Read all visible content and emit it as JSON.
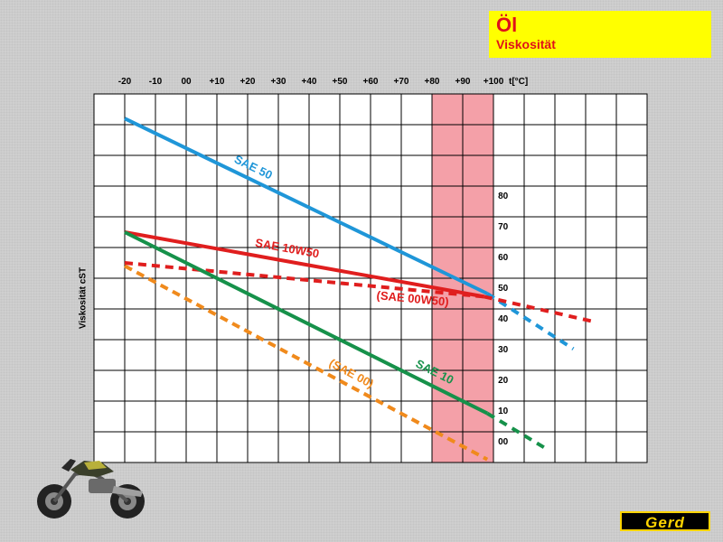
{
  "header": {
    "title": "Öl",
    "subtitle": "Viskosität"
  },
  "logo": {
    "text": "Gerd"
  },
  "chart_data": {
    "type": "line",
    "xlabel": "t[°C]",
    "ylabel": "Viskosität cST",
    "x_tick_labels": [
      "-20",
      "-10",
      "00",
      "+10",
      "+20",
      "+30",
      "+40",
      "+50",
      "+60",
      "+70",
      "+80",
      "+90",
      "+100"
    ],
    "x_ticks": [
      -20,
      -10,
      0,
      10,
      20,
      30,
      40,
      50,
      60,
      70,
      80,
      90,
      100
    ],
    "y_tick_labels": [
      "00",
      "10",
      "20",
      "30",
      "40",
      "50",
      "60",
      "70",
      "80"
    ],
    "y_ticks": [
      0,
      10,
      20,
      30,
      40,
      50,
      60,
      70,
      80
    ],
    "xlim": [
      -30,
      150
    ],
    "ylim": [
      -5,
      115
    ],
    "grid": true,
    "highlight_band": {
      "x": [
        80,
        100
      ],
      "color": "#f4a0a8"
    },
    "series": [
      {
        "name": "SAE 50",
        "color": "#1f96d8",
        "style": "solid",
        "points": [
          [
            -20,
            107
          ],
          [
            98,
            50
          ]
        ],
        "extension": [
          [
            98,
            50
          ],
          [
            126,
            32
          ]
        ]
      },
      {
        "name": "SAE 10W50",
        "color": "#e01e1e",
        "style": "solid",
        "points": [
          [
            -20,
            70
          ],
          [
            97,
            49
          ]
        ],
        "extension": [
          [
            97,
            49
          ],
          [
            132,
            41
          ]
        ]
      },
      {
        "name": "(SAE 00W50)",
        "color": "#e01e1e",
        "style": "dashed",
        "points": [
          [
            -20,
            60
          ],
          [
            97,
            49
          ]
        ]
      },
      {
        "name": "SAE 10",
        "color": "#16914a",
        "style": "solid",
        "points": [
          [
            -20,
            70
          ],
          [
            98,
            11
          ]
        ],
        "extension": [
          [
            98,
            11
          ],
          [
            118,
            -1
          ]
        ]
      },
      {
        "name": "(SAE 00)",
        "color": "#f08a1c",
        "style": "dashed",
        "points": [
          [
            -20,
            59
          ],
          [
            98,
            -4
          ]
        ]
      }
    ]
  }
}
